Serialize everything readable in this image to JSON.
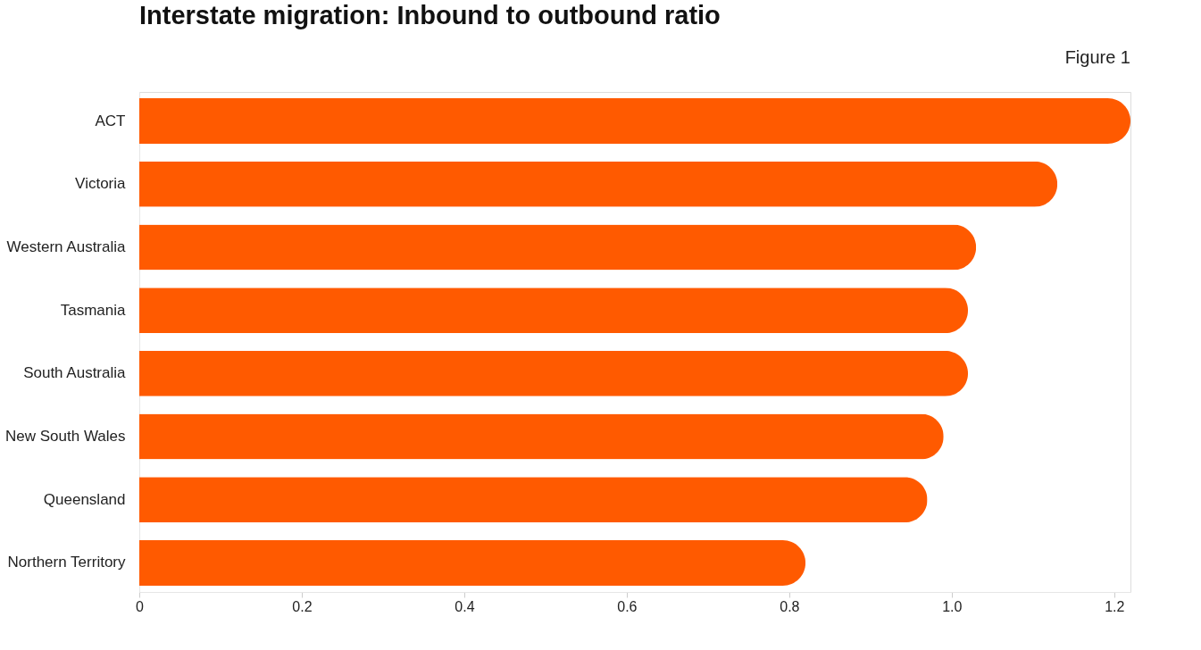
{
  "chart_data": {
    "type": "bar",
    "orientation": "horizontal",
    "title": "Interstate migration: Inbound to outbound ratio",
    "annotations": [
      "Figure 1"
    ],
    "categories": [
      "ACT",
      "Victoria",
      "Western Australia",
      "Tasmania",
      "South Australia",
      "New South Wales",
      "Queensland",
      "Northern Territory"
    ],
    "values": [
      1.22,
      1.13,
      1.03,
      1.02,
      1.02,
      0.99,
      0.97,
      0.82
    ],
    "color": "#ff5a00",
    "xlim": [
      0,
      1.22
    ],
    "xticks": [
      0,
      0.2,
      0.4,
      0.6,
      0.8,
      {
        "value": 1,
        "label": "1.0"
      },
      1.2
    ],
    "grid": false
  }
}
